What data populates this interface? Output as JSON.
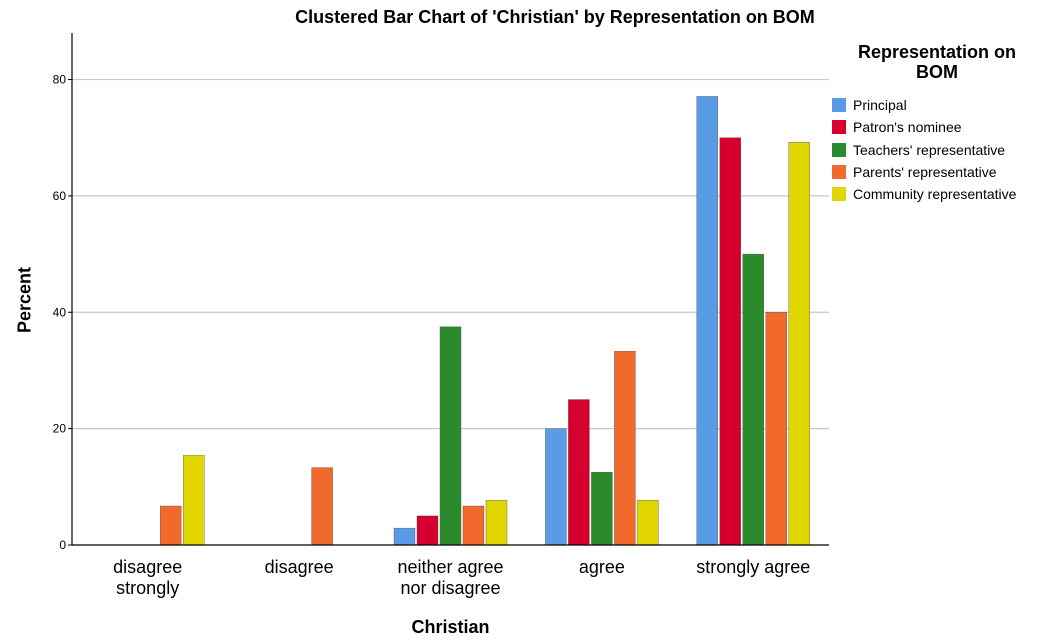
{
  "chart_data": {
    "type": "bar",
    "title": "Clustered Bar Chart of 'Christian' by Representation on BOM",
    "xlabel": "Christian",
    "ylabel": "Percent",
    "ylim": [
      0,
      88
    ],
    "yticks": [
      0,
      20,
      40,
      60,
      80
    ],
    "grid": true,
    "legend_title": "Representation on\nBOM",
    "legend_position": "right",
    "categories": [
      [
        "disagree",
        "strongly"
      ],
      [
        "disagree"
      ],
      [
        "neither agree",
        "nor disagree"
      ],
      [
        "agree"
      ],
      [
        "strongly agree"
      ]
    ],
    "series": [
      {
        "name": "Principal",
        "color": "#5a9be6",
        "values": [
          0,
          0,
          2.9,
          20.0,
          77.1
        ]
      },
      {
        "name": "Patron's nominee",
        "color": "#d6002e",
        "values": [
          0,
          0,
          5.0,
          25.0,
          70.0
        ]
      },
      {
        "name": "Teachers' representative",
        "color": "#2b8a2b",
        "values": [
          0,
          0,
          37.5,
          12.5,
          50.0
        ]
      },
      {
        "name": "Parents' representative",
        "color": "#f2692c",
        "values": [
          6.7,
          13.3,
          6.7,
          33.3,
          40.0
        ]
      },
      {
        "name": "Community representative",
        "color": "#e2d600",
        "values": [
          15.4,
          0,
          7.7,
          7.7,
          69.2
        ]
      }
    ]
  }
}
